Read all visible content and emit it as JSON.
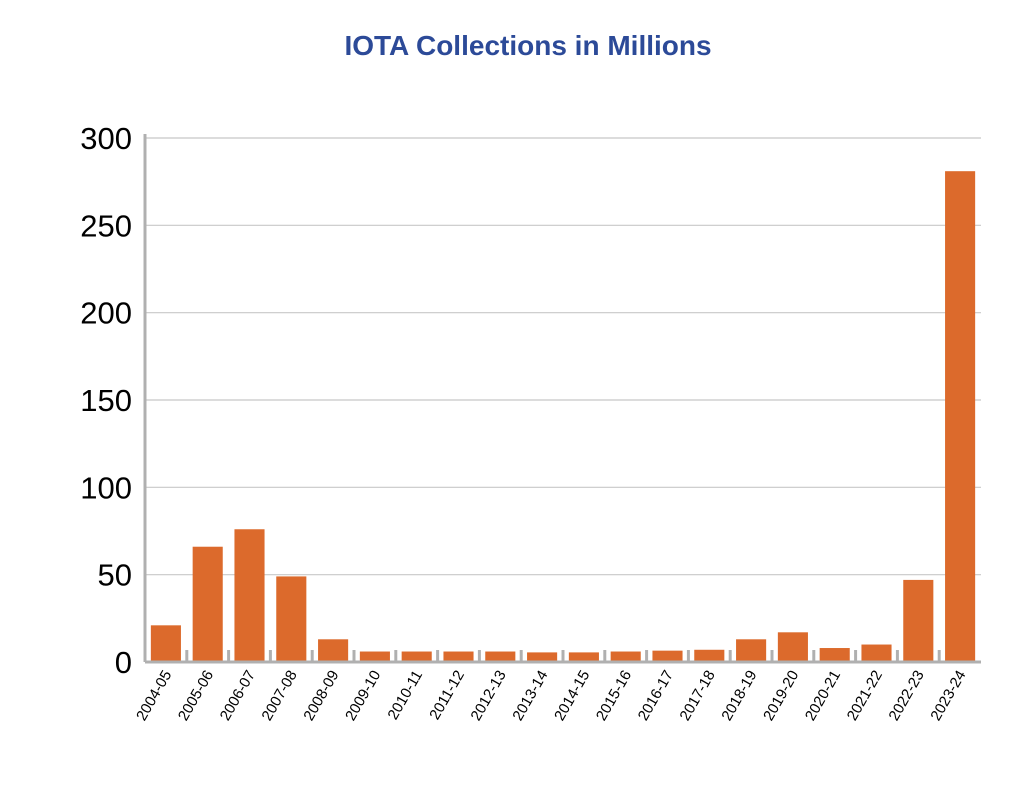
{
  "chart_data": {
    "type": "bar",
    "title": "IOTA Collections in Millions",
    "xlabel": "",
    "ylabel": "",
    "ylim": [
      0,
      300
    ],
    "yticks": [
      0,
      50,
      100,
      150,
      200,
      250,
      300
    ],
    "grid": true,
    "legend": "none",
    "categories": [
      "2004-05",
      "2005-06",
      "2006-07",
      "2007-08",
      "2008-09",
      "2009-10",
      "2010-11",
      "2011-12",
      "2012-13",
      "2013-14",
      "2014-15",
      "2015-16",
      "2016-17",
      "2017-18",
      "2018-19",
      "2019-20",
      "2020-21",
      "2021-22",
      "2022-23",
      "2023-24"
    ],
    "values": [
      21,
      66,
      76,
      49,
      13,
      6,
      6,
      6,
      6,
      5.5,
      5.5,
      6,
      6.5,
      7,
      13,
      17,
      8,
      10,
      47,
      281
    ],
    "bar_color": "#dc6a2c",
    "grid_color": "#c8c8c8",
    "axis_color": "#b0b0b0",
    "title_color": "#2c4a98"
  }
}
